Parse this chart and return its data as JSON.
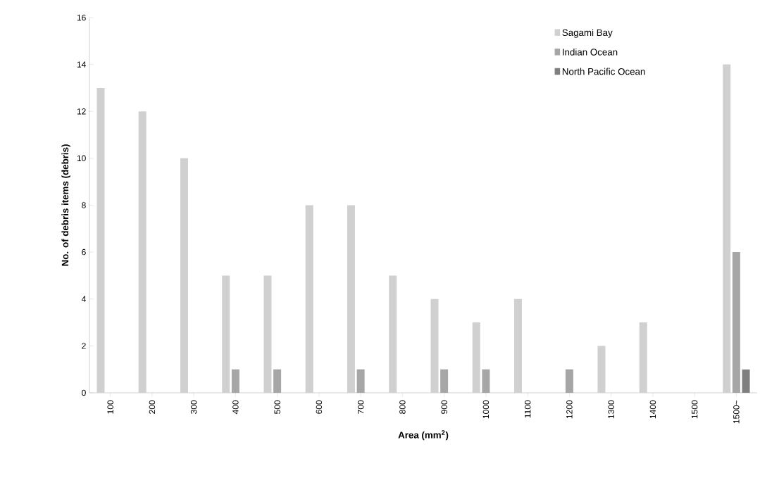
{
  "chart_data": {
    "type": "bar",
    "xlabel": "Area (mm$^{2}$)",
    "ylabel": "No. of debris items (debris)",
    "categories": [
      "100",
      "200",
      "300",
      "400",
      "500",
      "600",
      "700",
      "800",
      "900",
      "1000",
      "1100",
      "1200",
      "1300",
      "1400",
      "1500",
      "1500~"
    ],
    "series": [
      {
        "name": "Sagami Bay",
        "color": "#d0d0d0",
        "values": [
          13,
          12,
          10,
          5,
          5,
          8,
          8,
          5,
          4,
          3,
          4,
          0,
          2,
          3,
          0,
          14
        ]
      },
      {
        "name": "Indian Ocean",
        "color": "#a6a6a6",
        "values": [
          0,
          0,
          0,
          1,
          1,
          0,
          1,
          0,
          1,
          1,
          0,
          1,
          0,
          0,
          0,
          6
        ]
      },
      {
        "name": "North Pacific Ocean",
        "color": "#7f7f7f",
        "values": [
          0,
          0,
          0,
          0,
          0,
          0,
          0,
          0,
          0,
          0,
          0,
          0,
          0,
          0,
          0,
          1
        ]
      }
    ],
    "ylim": [
      0,
      16
    ],
    "yticks": [
      0,
      2,
      4,
      6,
      8,
      10,
      12,
      14,
      16
    ],
    "legend": "top right"
  }
}
